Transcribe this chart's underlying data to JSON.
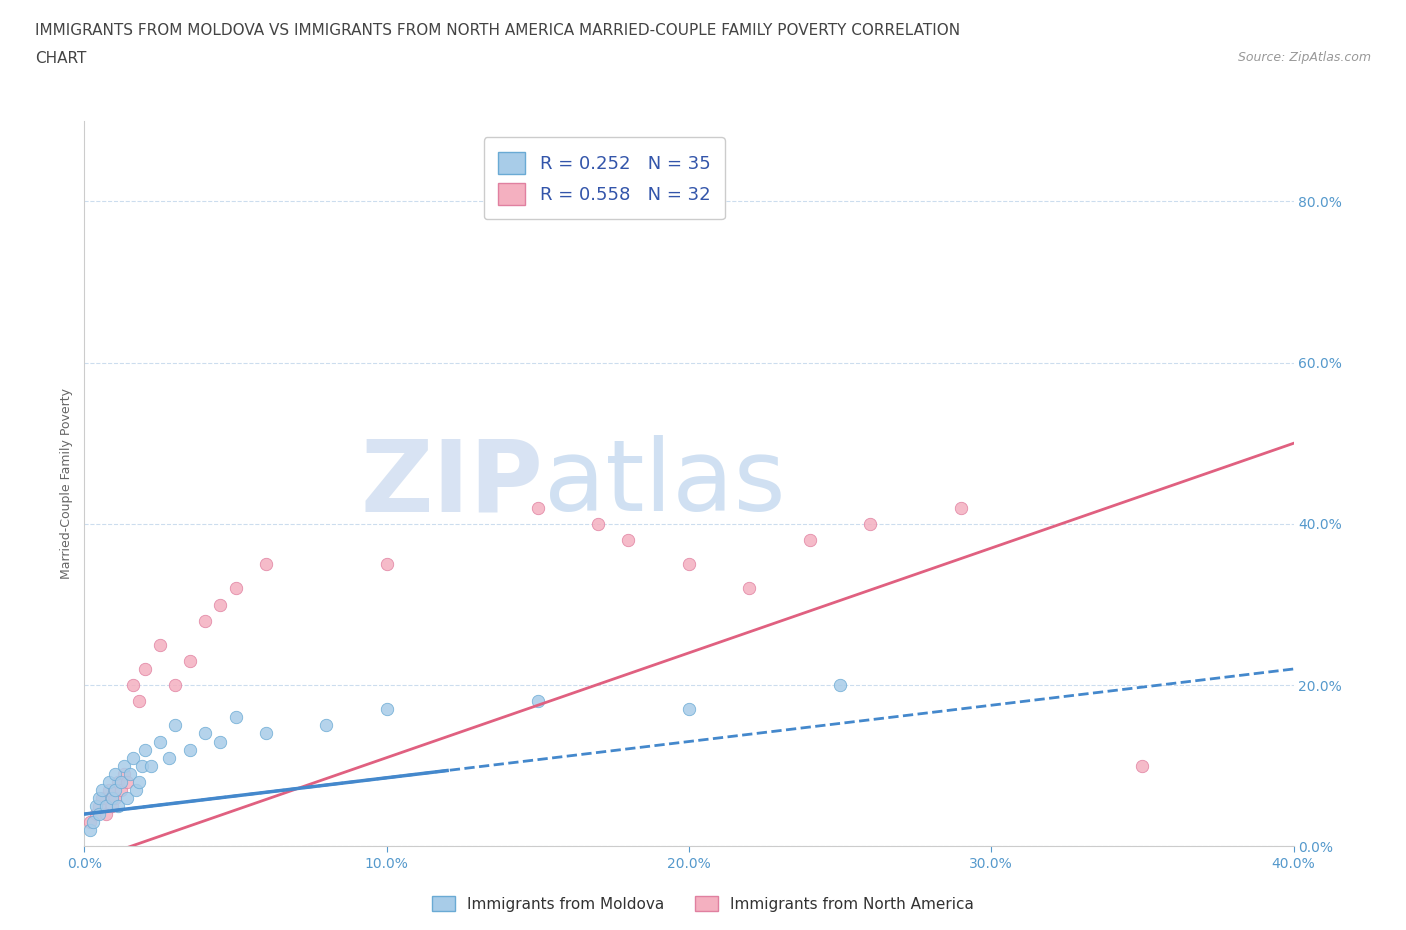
{
  "title_line1": "IMMIGRANTS FROM MOLDOVA VS IMMIGRANTS FROM NORTH AMERICA MARRIED-COUPLE FAMILY POVERTY CORRELATION",
  "title_line2": "CHART",
  "source_text": "Source: ZipAtlas.com",
  "ylabel": "Married-Couple Family Poverty",
  "xlim": [
    0.0,
    0.4
  ],
  "ylim": [
    0.0,
    0.9
  ],
  "xtick_labels": [
    "0.0%",
    "10.0%",
    "20.0%",
    "30.0%",
    "40.0%"
  ],
  "xtick_vals": [
    0.0,
    0.1,
    0.2,
    0.3,
    0.4
  ],
  "ytick_labels": [
    "0.0%",
    "20.0%",
    "40.0%",
    "60.0%",
    "80.0%"
  ],
  "ytick_vals": [
    0.0,
    0.2,
    0.4,
    0.6,
    0.8
  ],
  "moldova_color": "#a8cce8",
  "moldova_edge": "#6aaad4",
  "north_america_color": "#f4b0c0",
  "north_america_edge": "#e080a0",
  "trend_moldova_color": "#4488cc",
  "trend_north_america_color": "#e06080",
  "R_moldova": 0.252,
  "N_moldova": 35,
  "R_north_america": 0.558,
  "N_north_america": 32,
  "moldova_x": [
    0.002,
    0.003,
    0.004,
    0.005,
    0.005,
    0.006,
    0.007,
    0.008,
    0.009,
    0.01,
    0.01,
    0.011,
    0.012,
    0.013,
    0.014,
    0.015,
    0.016,
    0.017,
    0.018,
    0.019,
    0.02,
    0.022,
    0.025,
    0.028,
    0.03,
    0.035,
    0.04,
    0.045,
    0.05,
    0.06,
    0.08,
    0.1,
    0.15,
    0.2,
    0.25
  ],
  "moldova_y": [
    0.02,
    0.03,
    0.05,
    0.04,
    0.06,
    0.07,
    0.05,
    0.08,
    0.06,
    0.07,
    0.09,
    0.05,
    0.08,
    0.1,
    0.06,
    0.09,
    0.11,
    0.07,
    0.08,
    0.1,
    0.12,
    0.1,
    0.13,
    0.11,
    0.15,
    0.12,
    0.14,
    0.13,
    0.16,
    0.14,
    0.15,
    0.17,
    0.18,
    0.17,
    0.2
  ],
  "north_america_x": [
    0.002,
    0.004,
    0.005,
    0.006,
    0.007,
    0.008,
    0.009,
    0.01,
    0.011,
    0.012,
    0.013,
    0.014,
    0.016,
    0.018,
    0.02,
    0.025,
    0.03,
    0.035,
    0.04,
    0.045,
    0.05,
    0.06,
    0.1,
    0.15,
    0.17,
    0.18,
    0.2,
    0.22,
    0.24,
    0.26,
    0.29,
    0.35
  ],
  "north_america_y": [
    0.03,
    0.04,
    0.05,
    0.06,
    0.04,
    0.07,
    0.05,
    0.06,
    0.08,
    0.07,
    0.09,
    0.08,
    0.2,
    0.18,
    0.22,
    0.25,
    0.2,
    0.23,
    0.28,
    0.3,
    0.32,
    0.35,
    0.35,
    0.42,
    0.4,
    0.38,
    0.35,
    0.32,
    0.38,
    0.4,
    0.42,
    0.1
  ],
  "watermark_text_1": "ZIP",
  "watermark_text_2": "atlas",
  "legend_label_moldova": "Immigrants from Moldova",
  "legend_label_north_america": "Immigrants from North America",
  "title_fontsize": 11,
  "axis_label_fontsize": 9,
  "tick_fontsize": 10,
  "tick_color": "#5599cc",
  "background_color": "#ffffff",
  "grid_color": "#ccddee",
  "marker_size": 80
}
